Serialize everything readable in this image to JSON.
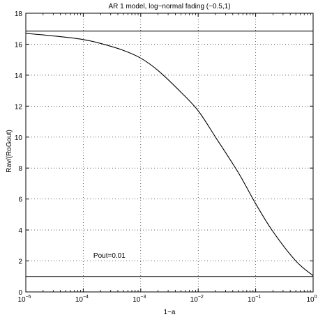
{
  "chart_data": {
    "type": "line",
    "title": "AR 1 model, log−normal fading (−0.5,1)",
    "xlabel": "1−a",
    "ylabel": "Rav/(RoGout)",
    "x_scale": "log",
    "xlim": [
      1e-05,
      1
    ],
    "ylim": [
      0,
      18
    ],
    "x_ticks": [
      {
        "base": "10",
        "exp": "−5"
      },
      {
        "base": "10",
        "exp": "−4"
      },
      {
        "base": "10",
        "exp": "−3"
      },
      {
        "base": "10",
        "exp": "−2"
      },
      {
        "base": "10",
        "exp": "−1"
      },
      {
        "base": "10",
        "exp": "0"
      }
    ],
    "y_ticks": [
      "0",
      "2",
      "4",
      "6",
      "8",
      "10",
      "12",
      "14",
      "16",
      "18"
    ],
    "grid": true,
    "annotations": [
      {
        "text": "Pout=0.01",
        "x": 0.00015,
        "y": 2.2
      }
    ],
    "series": [
      {
        "style": "curve",
        "x": [
          1e-05,
          2e-05,
          5e-05,
          0.0001,
          0.0002,
          0.0005,
          0.001,
          0.002,
          0.005,
          0.01,
          0.02,
          0.05,
          0.1,
          0.2,
          0.5,
          1
        ],
        "y": [
          16.7,
          16.6,
          16.45,
          16.3,
          16.05,
          15.6,
          15.1,
          14.3,
          12.9,
          11.7,
          10.0,
          7.7,
          5.7,
          3.9,
          2.0,
          1.05
        ]
      },
      {
        "style": "hline",
        "x": [
          1e-05,
          1
        ],
        "y": [
          16.85,
          16.85
        ]
      },
      {
        "style": "hline",
        "x": [
          1e-05,
          1
        ],
        "y": [
          1.0,
          1.0
        ]
      }
    ]
  }
}
